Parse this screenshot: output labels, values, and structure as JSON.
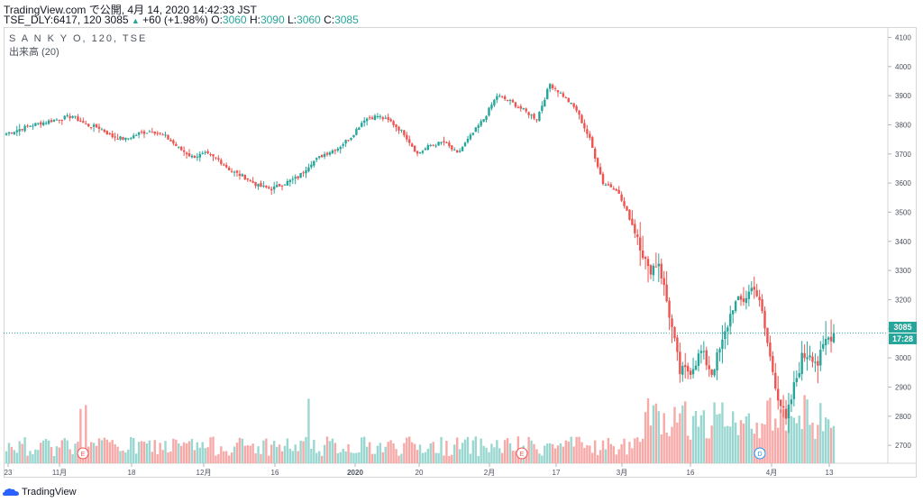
{
  "header": {
    "line1_prefix": "TradingView.com で公開, 4月 14, 2020 14:42:33 JST",
    "symbol_text": "TSE_DLY:6417, 120 3085",
    "change_arrow": "▲",
    "change_text": "+60 (+1.98%)",
    "o_label": "O:",
    "o_value": "3060",
    "h_label": "H:",
    "h_value": "3090",
    "l_label": "L:",
    "l_value": "3060",
    "c_label": "C:",
    "c_value": "3085"
  },
  "legend": {
    "series_name": "S A N K Y O, 120, TSE",
    "volume_name": "出来高 (20)"
  },
  "price_scale": {
    "last_price": "3085",
    "countdown": "17:28"
  },
  "footer": {
    "brand": "TradingView"
  },
  "colors": {
    "up": "#26a69a",
    "down": "#ef5350",
    "vol_up": "#99d7d0",
    "vol_down": "#f7a9a7"
  },
  "events": [
    {
      "label": "E",
      "kind": "earnings"
    },
    {
      "label": "E",
      "kind": "earnings"
    },
    {
      "label": "D",
      "kind": "dividend"
    }
  ],
  "chart_data": {
    "type": "candlestick",
    "title": "S A N K Y O, 120, TSE",
    "ylim": [
      2620,
      4120
    ],
    "y_ticks": [
      "2700",
      "2800",
      "2900",
      "3000",
      "3100",
      "3200",
      "3300",
      "3400",
      "3500",
      "3600",
      "3700",
      "3800",
      "3900",
      "4000",
      "4100"
    ],
    "x_ticks": [
      "23",
      "11月",
      "18",
      "12月",
      "16",
      "2020",
      "20",
      "2月",
      "17",
      "3月",
      "16",
      "4月",
      "13"
    ],
    "grid": true,
    "close_anchors": [
      [
        0,
        3770
      ],
      [
        10,
        3800
      ],
      [
        20,
        3820
      ],
      [
        25,
        3830
      ],
      [
        30,
        3800
      ],
      [
        35,
        3790
      ],
      [
        40,
        3760
      ],
      [
        45,
        3750
      ],
      [
        50,
        3770
      ],
      [
        55,
        3780
      ],
      [
        60,
        3760
      ],
      [
        65,
        3720
      ],
      [
        70,
        3690
      ],
      [
        75,
        3700
      ],
      [
        80,
        3680
      ],
      [
        85,
        3640
      ],
      [
        90,
        3620
      ],
      [
        95,
        3590
      ],
      [
        100,
        3580
      ],
      [
        105,
        3600
      ],
      [
        110,
        3620
      ],
      [
        115,
        3670
      ],
      [
        120,
        3700
      ],
      [
        125,
        3720
      ],
      [
        130,
        3760
      ],
      [
        135,
        3820
      ],
      [
        140,
        3830
      ],
      [
        145,
        3810
      ],
      [
        150,
        3770
      ],
      [
        155,
        3700
      ],
      [
        160,
        3730
      ],
      [
        165,
        3740
      ],
      [
        170,
        3700
      ],
      [
        175,
        3760
      ],
      [
        180,
        3820
      ],
      [
        185,
        3900
      ],
      [
        190,
        3880
      ],
      [
        195,
        3850
      ],
      [
        200,
        3820
      ],
      [
        205,
        3940
      ],
      [
        210,
        3900
      ],
      [
        215,
        3850
      ],
      [
        220,
        3750
      ],
      [
        225,
        3600
      ],
      [
        230,
        3580
      ],
      [
        235,
        3480
      ],
      [
        238,
        3420
      ],
      [
        242,
        3300
      ],
      [
        246,
        3330
      ],
      [
        250,
        3150
      ],
      [
        254,
        2950
      ],
      [
        258,
        2960
      ],
      [
        262,
        3020
      ],
      [
        266,
        2950
      ],
      [
        270,
        3050
      ],
      [
        274,
        3180
      ],
      [
        278,
        3200
      ],
      [
        282,
        3250
      ],
      [
        285,
        3150
      ],
      [
        288,
        3000
      ],
      [
        291,
        2870
      ],
      [
        294,
        2780
      ],
      [
        297,
        2900
      ],
      [
        300,
        3000
      ],
      [
        303,
        3020
      ],
      [
        306,
        2980
      ],
      [
        309,
        3060
      ],
      [
        312,
        3085
      ]
    ],
    "volume_note": "volume bars shown below price"
  }
}
